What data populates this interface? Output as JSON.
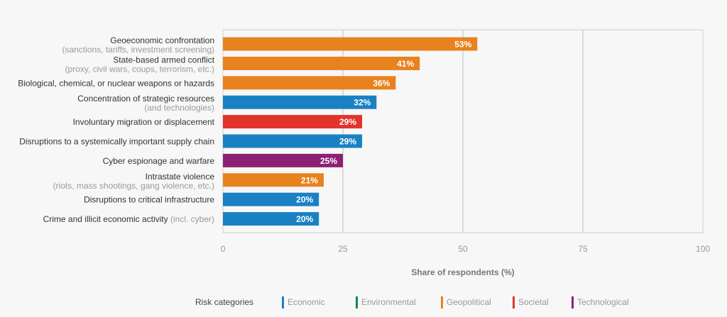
{
  "chart_data": {
    "type": "bar",
    "orientation": "horizontal",
    "xlabel": "Share of respondents (%)",
    "xlim": [
      0,
      100
    ],
    "xticks": [
      "0",
      "25",
      "50",
      "75",
      "100"
    ],
    "grid": true,
    "categories": [
      {
        "label": "Geoeconomic confrontation",
        "sub": "(sanctions, tariffs, investment screening)",
        "value": 53,
        "value_label": "53%",
        "category": "Geopolitical"
      },
      {
        "label": "State-based armed conflict",
        "sub": "(proxy, civil wars, coups, terrorism, etc.)",
        "value": 41,
        "value_label": "41%",
        "category": "Geopolitical"
      },
      {
        "label": "Biological, chemical, or nuclear weapons or hazards",
        "sub": "",
        "value": 36,
        "value_label": "36%",
        "category": "Geopolitical"
      },
      {
        "label": "Concentration of strategic resources",
        "sub": "(and technologies)",
        "value": 32,
        "value_label": "32%",
        "category": "Economic"
      },
      {
        "label": "Involuntary migration or displacement",
        "sub": "",
        "value": 29,
        "value_label": "29%",
        "category": "Societal"
      },
      {
        "label": "Disruptions to a systemically important supply chain",
        "sub": "",
        "value": 29,
        "value_label": "29%",
        "category": "Economic"
      },
      {
        "label": "Cyber espionage and warfare",
        "sub": "",
        "value": 25,
        "value_label": "25%",
        "category": "Technological"
      },
      {
        "label": "Intrastate violence",
        "sub": "(riots, mass shootings, gang violence, etc.)",
        "value": 21,
        "value_label": "21%",
        "category": "Geopolitical"
      },
      {
        "label": "Disruptions to critical infrastructure",
        "sub": "",
        "value": 20,
        "value_label": "20%",
        "category": "Economic"
      },
      {
        "label": "Crime and illicit economic activity",
        "inline_sub": "(incl. cyber)",
        "sub": "",
        "value": 20,
        "value_label": "20%",
        "category": "Economic"
      }
    ],
    "legend": {
      "title": "Risk categories",
      "placement": "bottom",
      "items": [
        {
          "name": "Economic",
          "color": "#1a80c4"
        },
        {
          "name": "Environmental",
          "color": "#13874b"
        },
        {
          "name": "Geopolitical",
          "color": "#e8821e"
        },
        {
          "name": "Societal",
          "color": "#e3342b"
        },
        {
          "name": "Technological",
          "color": "#8c2173"
        }
      ]
    }
  }
}
